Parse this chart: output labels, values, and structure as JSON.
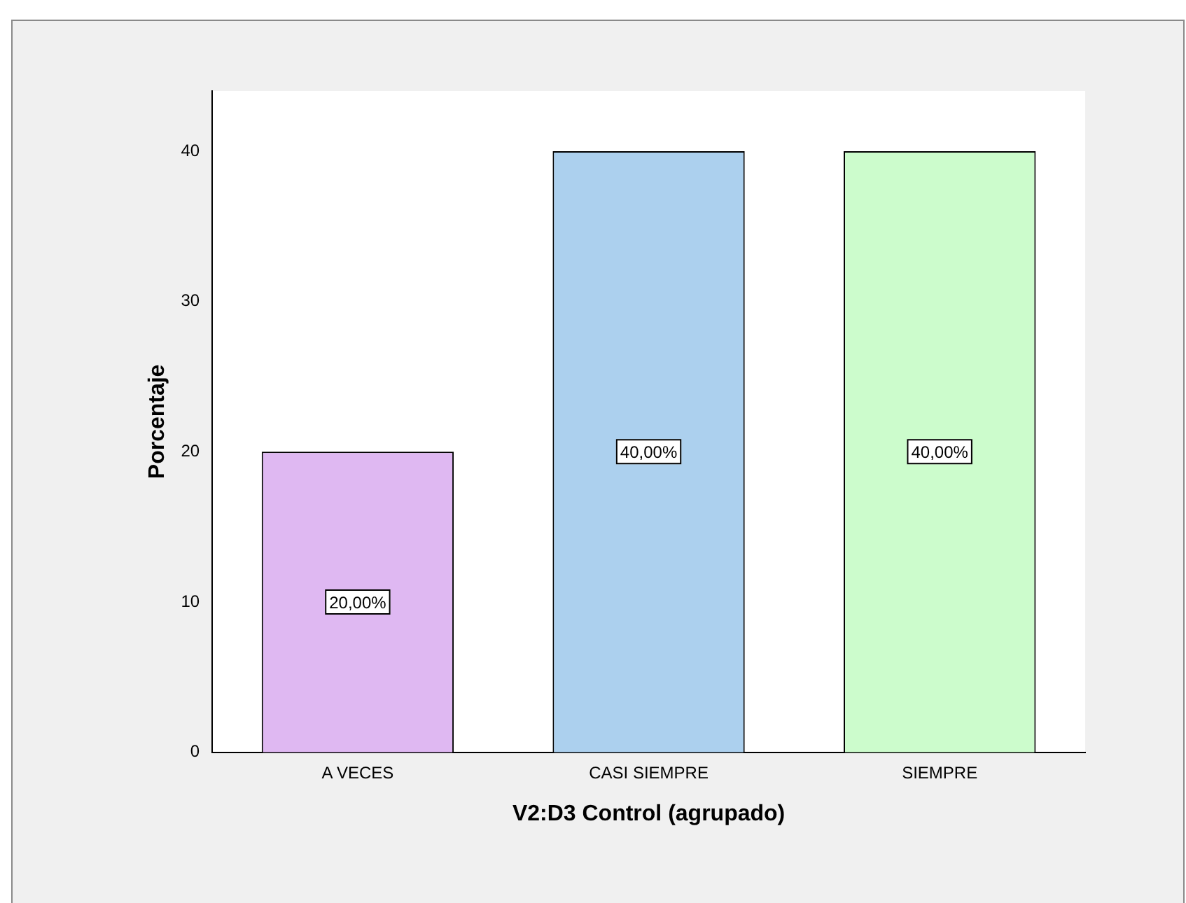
{
  "chart_data": {
    "type": "bar",
    "xlabel": "V2:D3 Control (agrupado)",
    "ylabel": "Porcentaje",
    "categories": [
      "A VECES",
      "CASI SIEMPRE",
      "SIEMPRE"
    ],
    "values": [
      20,
      40,
      40
    ],
    "colors": [
      "#dfb8f2",
      "#acd0ee",
      "#ccfccc"
    ],
    "value_labels": [
      "20,00%",
      "40,00%",
      "40,00%"
    ],
    "ylim": [
      0,
      44
    ],
    "yticks": [
      0,
      10,
      20,
      30,
      40
    ],
    "grid": false
  }
}
